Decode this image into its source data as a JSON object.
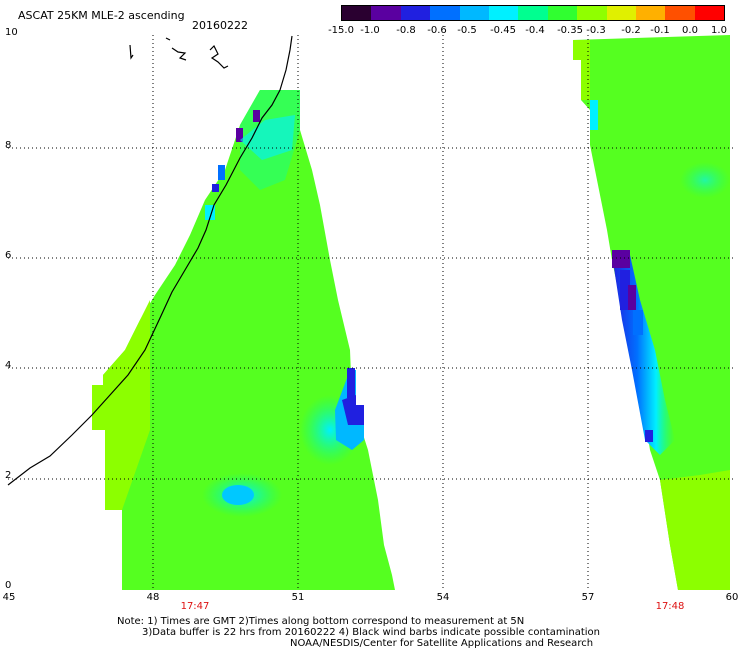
{
  "header": {
    "title": "ASCAT 25KM MLE-2 ascending",
    "date": "20160222"
  },
  "colorbar": {
    "labels": [
      "-15.0",
      "-1.0",
      "-0.8",
      "-0.6",
      "-0.5",
      "-0.45",
      "-0.4",
      "-0.35",
      "-0.3",
      "-0.2",
      "-0.1",
      "0.0",
      "1.0"
    ],
    "colors": [
      "#2a0030",
      "#5a00a0",
      "#2020e0",
      "#0070ff",
      "#00b8ff",
      "#00f0ff",
      "#00ff90",
      "#30ff30",
      "#90ff00",
      "#e0f000",
      "#ffb000",
      "#ff5000",
      "#ff0000"
    ]
  },
  "axes": {
    "x_ticks": [
      "45",
      "48",
      "51",
      "54",
      "57",
      "60"
    ],
    "y_ticks": [
      "0",
      "2",
      "4",
      "6",
      "8",
      "10"
    ]
  },
  "swath_times": [
    "17:47",
    "17:48"
  ],
  "notes": {
    "line1": "Note: 1) Times are GMT 2)Times along bottom correspond to measurement at 5N",
    "line2": "3)Data buffer is 22 hrs from 20160222 4) Black wind barbs indicate possible contamination",
    "line3": "NOAA/NESDIS/Center for Satellite Applications and Research"
  }
}
